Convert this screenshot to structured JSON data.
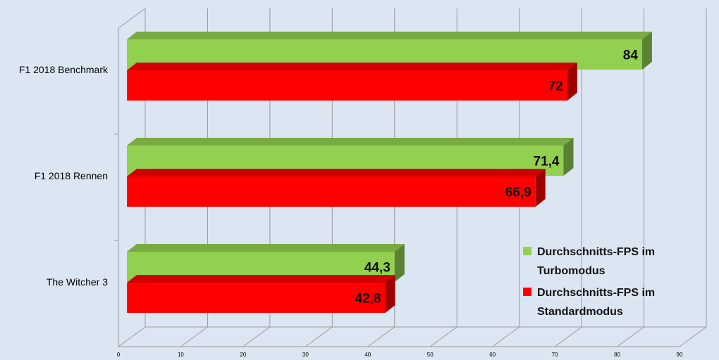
{
  "chart_data": {
    "type": "bar",
    "orientation": "horizontal",
    "categories": [
      "F1 2018 Benchmark",
      "F1 2018 Rennen",
      "The Witcher 3"
    ],
    "series": [
      {
        "name": "Durchschnitts-FPS im Turbomodus",
        "legend_lines": [
          "Durchschnitts-FPS im",
          "Turbomodus"
        ],
        "values": [
          84,
          71.4,
          44.3
        ],
        "labels": [
          "84",
          "71,4",
          "44,3"
        ],
        "color": "#92d050"
      },
      {
        "name": "Durchschnitts-FPS im Standardmodus",
        "legend_lines": [
          "Durchschnitts-FPS im",
          "Standardmodus"
        ],
        "values": [
          72,
          66.9,
          42.8
        ],
        "labels": [
          "72",
          "66,9",
          "42,8"
        ],
        "color": "#ff0000"
      }
    ],
    "xlim": [
      0,
      90
    ],
    "ticks": [
      "0",
      "10",
      "20",
      "30",
      "40",
      "50",
      "60",
      "70",
      "80",
      "90"
    ],
    "grid": true,
    "legend_position": "bottom-right",
    "title": "",
    "xlabel": "",
    "ylabel": ""
  }
}
